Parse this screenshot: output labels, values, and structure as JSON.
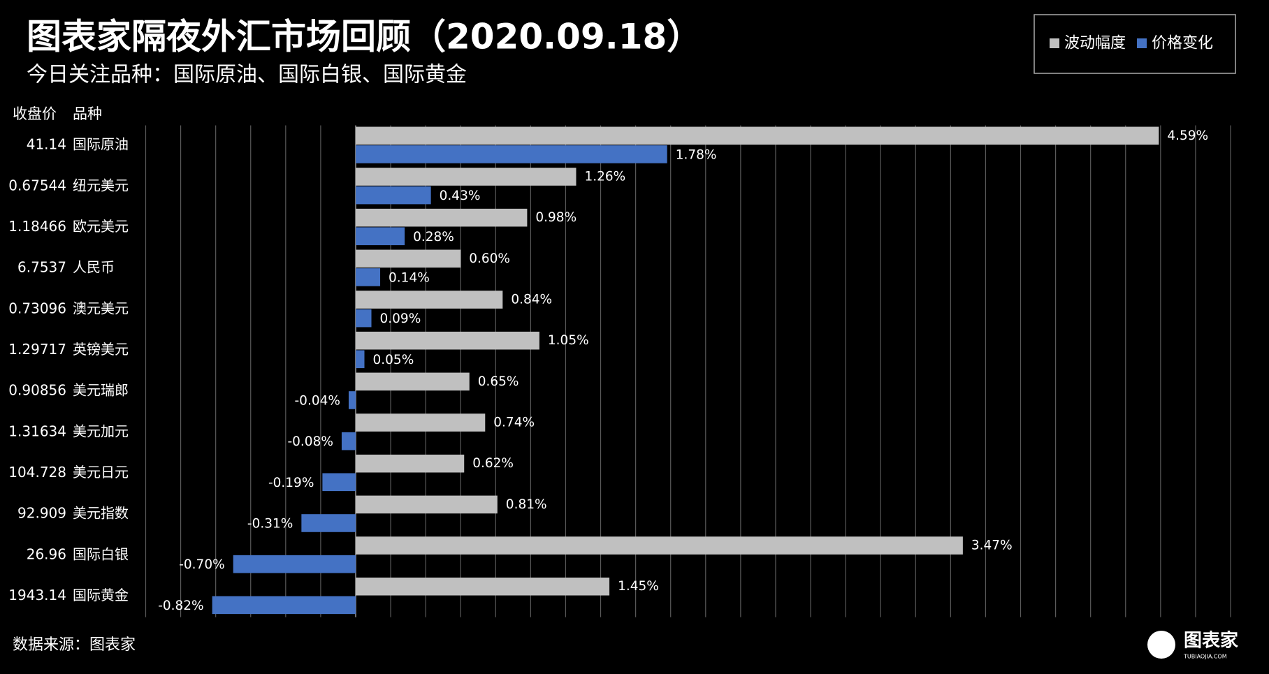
{
  "chart_data": {
    "type": "bar",
    "orientation": "horizontal",
    "title": "图表家隔夜外汇市场回顾（2020.09.18）",
    "subtitle": "今日关注品种：国际原油、国际白银、国际黄金",
    "price_header": "收盘价",
    "category_header": "品种",
    "categories": [
      "国际原油",
      "纽元美元",
      "欧元美元",
      "人民币",
      "澳元美元",
      "英镑美元",
      "美元瑞郎",
      "美元加元",
      "美元日元",
      "美元指数",
      "国际白银",
      "国际黄金"
    ],
    "close_prices": [
      41.14,
      0.67544,
      1.18466,
      6.7537,
      0.73096,
      1.29717,
      0.90856,
      1.31634,
      104.728,
      92.909,
      26.96,
      1943.14
    ],
    "series": [
      {
        "name": "波动幅度",
        "color": "#c0c0c0",
        "values": [
          4.59,
          1.26,
          0.98,
          0.6,
          0.84,
          1.05,
          0.65,
          0.74,
          0.62,
          0.81,
          3.47,
          1.45
        ],
        "value_labels": [
          "4.59%",
          "1.26%",
          "0.98%",
          "0.60%",
          "0.84%",
          "1.05%",
          "0.65%",
          "0.74%",
          "0.62%",
          "0.81%",
          "3.47%",
          "1.45%"
        ]
      },
      {
        "name": "价格变化",
        "color": "#4472c4",
        "values": [
          1.78,
          0.43,
          0.28,
          0.14,
          0.09,
          0.05,
          -0.04,
          -0.08,
          -0.19,
          -0.31,
          -0.7,
          -0.82
        ],
        "value_labels": [
          "1.78%",
          "0.43%",
          "0.28%",
          "0.14%",
          "0.09%",
          "0.05%",
          "-0.04%",
          "-0.08%",
          "-0.19%",
          "-0.31%",
          "-0.70%",
          "-0.82%"
        ]
      }
    ],
    "xlim": [
      -1.2,
      5.0
    ],
    "xticks": [
      -1.2,
      -1.0,
      -0.8,
      -0.6,
      -0.4,
      -0.2,
      0,
      0.2,
      0.4,
      0.6,
      0.8,
      1.0,
      1.2,
      1.4,
      1.6,
      1.8,
      2.0,
      2.2,
      2.4,
      2.6,
      2.8,
      3.0,
      3.2,
      3.4,
      3.6,
      3.8,
      4.0,
      4.2,
      4.4,
      4.6,
      4.8,
      5.0
    ],
    "grid": true,
    "legend": "top-right",
    "source": "数据来源：图表家",
    "logo": "图表家",
    "logo_sub": "TUBIAOJIA.COM"
  }
}
